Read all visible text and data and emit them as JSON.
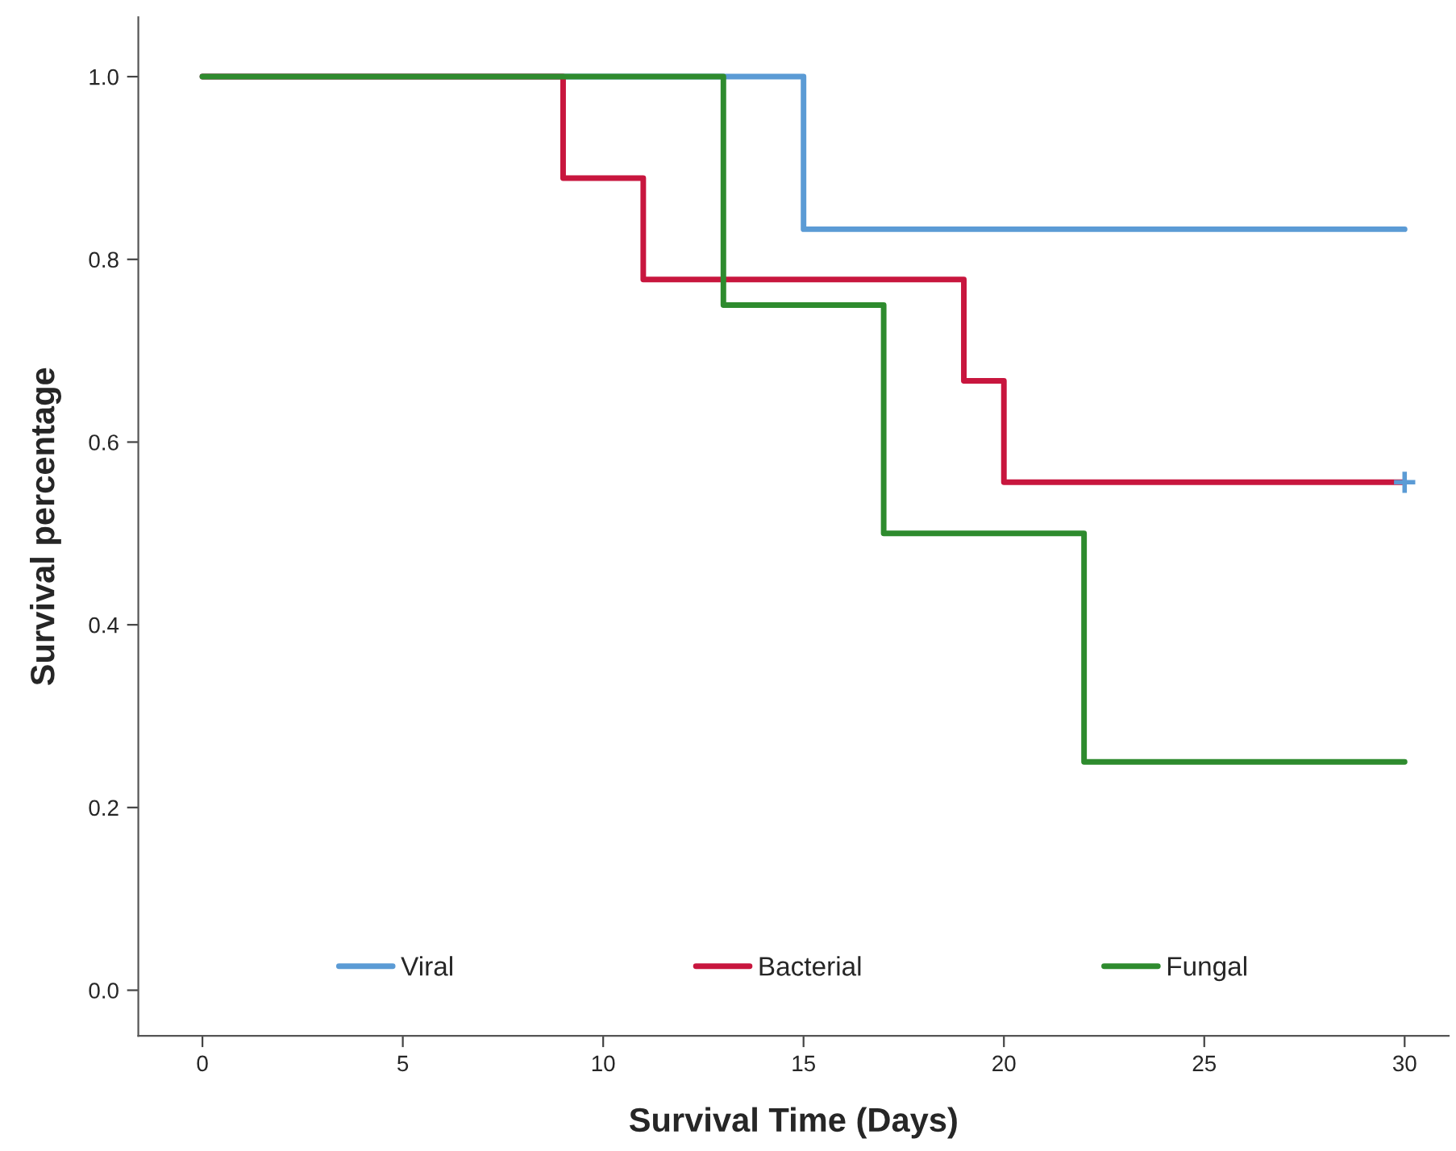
{
  "chart_data": {
    "type": "step",
    "xlabel": "Survival Time (Days)",
    "ylabel": "Survival percentage",
    "xlim": [
      -1.6,
      31.1
    ],
    "ylim": [
      -0.05,
      1.065
    ],
    "xticks": [
      0,
      5,
      10,
      15,
      20,
      25,
      30
    ],
    "yticks": [
      {
        "value": 0,
        "label": "0.0"
      },
      {
        "value": 0.2,
        "label": "0.2"
      },
      {
        "value": 0.4,
        "label": "0.4"
      },
      {
        "value": 0.6,
        "label": "0.6"
      },
      {
        "value": 0.8,
        "label": "0.8"
      },
      {
        "value": 1,
        "label": "1.0"
      }
    ],
    "grid": false,
    "legend": "bottom",
    "line_style": "solid",
    "series": [
      {
        "name": "Viral",
        "color": "#5b9bd5",
        "x": [
          0,
          15,
          30
        ],
        "values": [
          1.0,
          0.833,
          0.833
        ]
      },
      {
        "name": "Bacterial",
        "color": "#c8163e",
        "x": [
          0,
          9,
          11,
          19,
          20,
          30
        ],
        "values": [
          1.0,
          0.889,
          0.778,
          0.667,
          0.556,
          0.556
        ]
      },
      {
        "name": "Fungal",
        "color": "#2e8b2e",
        "x": [
          0,
          13,
          17,
          22,
          30
        ],
        "values": [
          1.0,
          0.75,
          0.5,
          0.25,
          0.25
        ]
      },
      {
        "type": "scatter",
        "color": "#5b9bd5",
        "marker": "cross",
        "x": [
          30
        ],
        "values": [
          0.556
        ]
      }
    ]
  }
}
